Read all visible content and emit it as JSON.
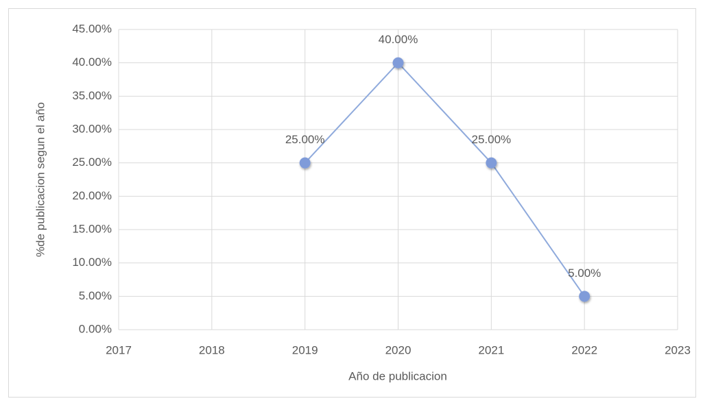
{
  "chart_data": {
    "type": "line",
    "x_label": "Año de publicacion",
    "y_label": "%de publicacion segun el año",
    "x": [
      2019,
      2020,
      2021,
      2022
    ],
    "values": [
      25,
      40,
      25,
      5
    ],
    "value_labels": [
      "25.00%",
      "40.00%",
      "25.00%",
      "5.00%"
    ],
    "color": "#8faadc",
    "marker_color": "#7f9bd9",
    "xlim": [
      2017,
      2023
    ],
    "xticks": [
      2017,
      2018,
      2019,
      2020,
      2021,
      2022,
      2023
    ],
    "ylim": [
      0,
      45
    ],
    "yticks": [
      {
        "value": 0,
        "label": "0.00%"
      },
      {
        "value": 5,
        "label": "5.00%"
      },
      {
        "value": 10,
        "label": "10.00%"
      },
      {
        "value": 15,
        "label": "15.00%"
      },
      {
        "value": 20,
        "label": "20.00%"
      },
      {
        "value": 25,
        "label": "25.00%"
      },
      {
        "value": 30,
        "label": "30.00%"
      },
      {
        "value": 35,
        "label": "35.00%"
      },
      {
        "value": 40,
        "label": "40.00%"
      },
      {
        "value": 45,
        "label": "45.00%"
      }
    ],
    "grid": true
  }
}
